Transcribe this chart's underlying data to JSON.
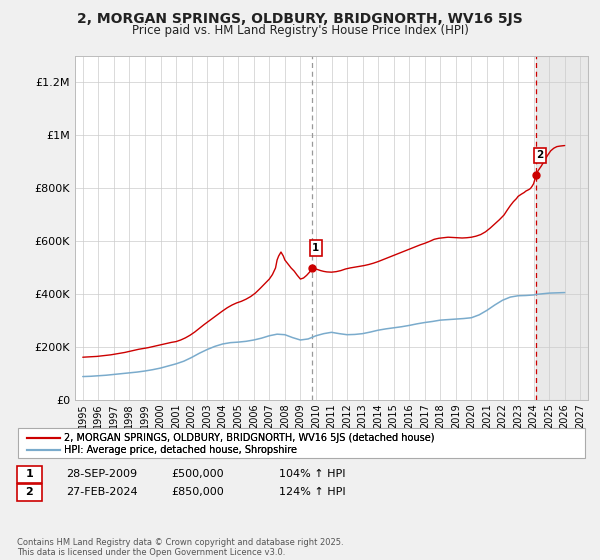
{
  "title": "2, MORGAN SPRINGS, OLDBURY, BRIDGNORTH, WV16 5JS",
  "subtitle": "Price paid vs. HM Land Registry's House Price Index (HPI)",
  "background_color": "#f0f0f0",
  "plot_bg_color": "#ffffff",
  "red_line_label": "2, MORGAN SPRINGS, OLDBURY, BRIDGNORTH, WV16 5JS (detached house)",
  "blue_line_label": "HPI: Average price, detached house, Shropshire",
  "red_color": "#cc0000",
  "blue_color": "#7aabcc",
  "ylim": [
    0,
    1300000
  ],
  "xlim_start": 1994.5,
  "xlim_end": 2027.5,
  "yticks": [
    0,
    200000,
    400000,
    600000,
    800000,
    1000000,
    1200000
  ],
  "ytick_labels": [
    "£0",
    "£200K",
    "£400K",
    "£600K",
    "£800K",
    "£1M",
    "£1.2M"
  ],
  "xticks": [
    1995,
    1996,
    1997,
    1998,
    1999,
    2000,
    2001,
    2002,
    2003,
    2004,
    2005,
    2006,
    2007,
    2008,
    2009,
    2010,
    2011,
    2012,
    2013,
    2014,
    2015,
    2016,
    2017,
    2018,
    2019,
    2020,
    2021,
    2022,
    2023,
    2024,
    2025,
    2026,
    2027
  ],
  "marker1_x": 2009.74,
  "marker1_y": 500000,
  "marker2_x": 2024.16,
  "marker2_y": 850000,
  "vline1_color": "#999999",
  "vline2_color": "#cc0000",
  "annotation1": [
    "1",
    "28-SEP-2009",
    "£500,000",
    "104% ↑ HPI"
  ],
  "annotation2": [
    "2",
    "27-FEB-2024",
    "£850,000",
    "124% ↑ HPI"
  ],
  "footer": "Contains HM Land Registry data © Crown copyright and database right 2025.\nThis data is licensed under the Open Government Licence v3.0.",
  "shaded_start": 2024.16,
  "shaded_end": 2027.5,
  "hpi_pts": [
    [
      1995.0,
      90000
    ],
    [
      1995.5,
      91000
    ],
    [
      1996.0,
      93000
    ],
    [
      1996.5,
      95000
    ],
    [
      1997.0,
      98000
    ],
    [
      1997.5,
      101000
    ],
    [
      1998.0,
      104000
    ],
    [
      1998.5,
      107000
    ],
    [
      1999.0,
      111000
    ],
    [
      1999.5,
      116000
    ],
    [
      2000.0,
      122000
    ],
    [
      2000.5,
      130000
    ],
    [
      2001.0,
      138000
    ],
    [
      2001.5,
      148000
    ],
    [
      2002.0,
      162000
    ],
    [
      2002.5,
      178000
    ],
    [
      2003.0,
      192000
    ],
    [
      2003.5,
      204000
    ],
    [
      2004.0,
      213000
    ],
    [
      2004.5,
      218000
    ],
    [
      2005.0,
      220000
    ],
    [
      2005.5,
      223000
    ],
    [
      2006.0,
      228000
    ],
    [
      2006.5,
      235000
    ],
    [
      2007.0,
      244000
    ],
    [
      2007.5,
      250000
    ],
    [
      2008.0,
      248000
    ],
    [
      2008.5,
      237000
    ],
    [
      2009.0,
      228000
    ],
    [
      2009.5,
      232000
    ],
    [
      2010.0,
      244000
    ],
    [
      2010.5,
      252000
    ],
    [
      2011.0,
      257000
    ],
    [
      2011.5,
      252000
    ],
    [
      2012.0,
      248000
    ],
    [
      2012.5,
      249000
    ],
    [
      2013.0,
      252000
    ],
    [
      2013.5,
      258000
    ],
    [
      2014.0,
      265000
    ],
    [
      2014.5,
      270000
    ],
    [
      2015.0,
      274000
    ],
    [
      2015.5,
      278000
    ],
    [
      2016.0,
      283000
    ],
    [
      2016.5,
      289000
    ],
    [
      2017.0,
      294000
    ],
    [
      2017.5,
      298000
    ],
    [
      2018.0,
      303000
    ],
    [
      2018.5,
      305000
    ],
    [
      2019.0,
      307000
    ],
    [
      2019.5,
      309000
    ],
    [
      2020.0,
      312000
    ],
    [
      2020.5,
      323000
    ],
    [
      2021.0,
      340000
    ],
    [
      2021.5,
      360000
    ],
    [
      2022.0,
      378000
    ],
    [
      2022.5,
      390000
    ],
    [
      2023.0,
      395000
    ],
    [
      2023.5,
      396000
    ],
    [
      2024.0,
      398000
    ],
    [
      2024.16,
      400000
    ],
    [
      2024.5,
      402000
    ],
    [
      2025.0,
      405000
    ],
    [
      2025.5,
      406000
    ],
    [
      2026.0,
      407000
    ]
  ],
  "red_pts": [
    [
      1995.0,
      163000
    ],
    [
      1995.3,
      164000
    ],
    [
      1995.6,
      165000
    ],
    [
      1995.9,
      166000
    ],
    [
      1996.2,
      168000
    ],
    [
      1996.5,
      170000
    ],
    [
      1996.8,
      172000
    ],
    [
      1997.1,
      175000
    ],
    [
      1997.4,
      178000
    ],
    [
      1997.7,
      181000
    ],
    [
      1998.0,
      185000
    ],
    [
      1998.3,
      189000
    ],
    [
      1998.6,
      193000
    ],
    [
      1998.9,
      196000
    ],
    [
      1999.2,
      199000
    ],
    [
      1999.5,
      203000
    ],
    [
      1999.8,
      207000
    ],
    [
      2000.1,
      211000
    ],
    [
      2000.4,
      215000
    ],
    [
      2000.7,
      219000
    ],
    [
      2001.0,
      222000
    ],
    [
      2001.3,
      228000
    ],
    [
      2001.6,
      236000
    ],
    [
      2001.9,
      246000
    ],
    [
      2002.2,
      258000
    ],
    [
      2002.5,
      272000
    ],
    [
      2002.8,
      286000
    ],
    [
      2003.1,
      299000
    ],
    [
      2003.4,
      312000
    ],
    [
      2003.7,
      325000
    ],
    [
      2004.0,
      338000
    ],
    [
      2004.3,
      350000
    ],
    [
      2004.6,
      360000
    ],
    [
      2004.9,
      368000
    ],
    [
      2005.2,
      374000
    ],
    [
      2005.5,
      382000
    ],
    [
      2005.8,
      392000
    ],
    [
      2006.1,
      405000
    ],
    [
      2006.4,
      422000
    ],
    [
      2006.7,
      440000
    ],
    [
      2007.0,
      458000
    ],
    [
      2007.2,
      475000
    ],
    [
      2007.4,
      500000
    ],
    [
      2007.5,
      530000
    ],
    [
      2007.6,
      545000
    ],
    [
      2007.7,
      555000
    ],
    [
      2007.75,
      560000
    ],
    [
      2007.8,
      555000
    ],
    [
      2007.9,
      545000
    ],
    [
      2008.0,
      530000
    ],
    [
      2008.2,
      515000
    ],
    [
      2008.4,
      500000
    ],
    [
      2008.6,
      488000
    ],
    [
      2008.8,
      472000
    ],
    [
      2009.0,
      458000
    ],
    [
      2009.2,
      462000
    ],
    [
      2009.4,
      472000
    ],
    [
      2009.6,
      485000
    ],
    [
      2009.74,
      500000
    ],
    [
      2009.9,
      498000
    ],
    [
      2010.1,
      494000
    ],
    [
      2010.3,
      490000
    ],
    [
      2010.5,
      487000
    ],
    [
      2010.7,
      485000
    ],
    [
      2011.0,
      484000
    ],
    [
      2011.3,
      486000
    ],
    [
      2011.6,
      490000
    ],
    [
      2011.9,
      496000
    ],
    [
      2012.2,
      500000
    ],
    [
      2012.5,
      503000
    ],
    [
      2012.8,
      506000
    ],
    [
      2013.1,
      509000
    ],
    [
      2013.4,
      513000
    ],
    [
      2013.7,
      518000
    ],
    [
      2014.0,
      524000
    ],
    [
      2014.3,
      531000
    ],
    [
      2014.6,
      538000
    ],
    [
      2014.9,
      545000
    ],
    [
      2015.2,
      552000
    ],
    [
      2015.5,
      559000
    ],
    [
      2015.8,
      566000
    ],
    [
      2016.1,
      573000
    ],
    [
      2016.4,
      580000
    ],
    [
      2016.7,
      587000
    ],
    [
      2017.0,
      593000
    ],
    [
      2017.3,
      600000
    ],
    [
      2017.6,
      608000
    ],
    [
      2017.9,
      612000
    ],
    [
      2018.2,
      614000
    ],
    [
      2018.5,
      616000
    ],
    [
      2018.8,
      615000
    ],
    [
      2019.1,
      614000
    ],
    [
      2019.4,
      613000
    ],
    [
      2019.7,
      614000
    ],
    [
      2020.0,
      616000
    ],
    [
      2020.3,
      620000
    ],
    [
      2020.6,
      626000
    ],
    [
      2020.9,
      636000
    ],
    [
      2021.2,
      650000
    ],
    [
      2021.5,
      666000
    ],
    [
      2021.8,
      682000
    ],
    [
      2022.1,
      700000
    ],
    [
      2022.3,
      718000
    ],
    [
      2022.5,
      735000
    ],
    [
      2022.7,
      750000
    ],
    [
      2022.9,
      762000
    ],
    [
      2023.0,
      770000
    ],
    [
      2023.2,
      778000
    ],
    [
      2023.4,
      785000
    ],
    [
      2023.5,
      790000
    ],
    [
      2023.6,
      793000
    ],
    [
      2023.7,
      796000
    ],
    [
      2023.8,
      800000
    ],
    [
      2023.9,
      808000
    ],
    [
      2024.0,
      818000
    ],
    [
      2024.1,
      838000
    ],
    [
      2024.16,
      850000
    ],
    [
      2024.3,
      868000
    ],
    [
      2024.5,
      885000
    ],
    [
      2024.7,
      905000
    ],
    [
      2024.9,
      925000
    ],
    [
      2025.1,
      942000
    ],
    [
      2025.3,
      952000
    ],
    [
      2025.5,
      958000
    ],
    [
      2025.7,
      960000
    ],
    [
      2026.0,
      962000
    ]
  ]
}
